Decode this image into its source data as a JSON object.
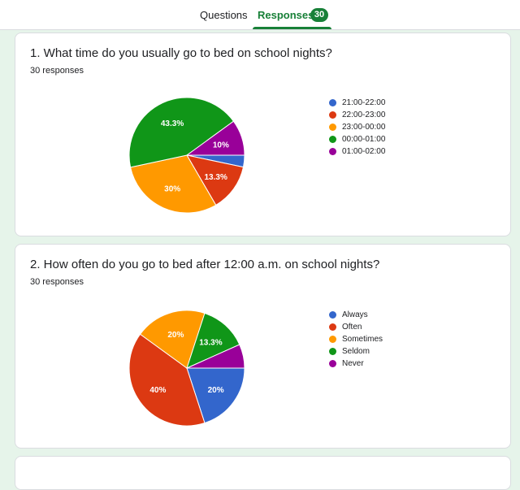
{
  "tabs": {
    "questions_label": "Questions",
    "responses_label": "Responses",
    "responses_count": "30"
  },
  "colors": {
    "accent": "#188038",
    "blue": "#3366cc",
    "red": "#dc3912",
    "orange": "#ff9900",
    "green": "#109618",
    "purple": "#990099"
  },
  "questions": [
    {
      "title": "1. What time do you usually go to bed on school nights?",
      "count_text": "30 responses"
    },
    {
      "title": "2. How often do you go to bed after 12:00 a.m. on school nights?",
      "count_text": "30 responses"
    }
  ],
  "chart_data": [
    {
      "type": "pie",
      "labels": [
        "21:00-22:00",
        "22:00-23:00",
        "23:00-00:00",
        "00:00-01:00",
        "01:00-02:00"
      ],
      "values": [
        3.3,
        13.3,
        30,
        43.3,
        10
      ],
      "value_labels": [
        "",
        "13.3%",
        "30%",
        "43.3%",
        "10%"
      ],
      "colors": [
        "#3366cc",
        "#dc3912",
        "#ff9900",
        "#109618",
        "#990099"
      ],
      "legend": "right"
    },
    {
      "type": "pie",
      "labels": [
        "Always",
        "Often",
        "Sometimes",
        "Seldom",
        "Never"
      ],
      "values": [
        20,
        40,
        20,
        13.3,
        6.7
      ],
      "value_labels": [
        "20%",
        "40%",
        "20%",
        "13.3%",
        ""
      ],
      "colors": [
        "#3366cc",
        "#dc3912",
        "#ff9900",
        "#109618",
        "#990099"
      ],
      "legend": "right"
    }
  ]
}
